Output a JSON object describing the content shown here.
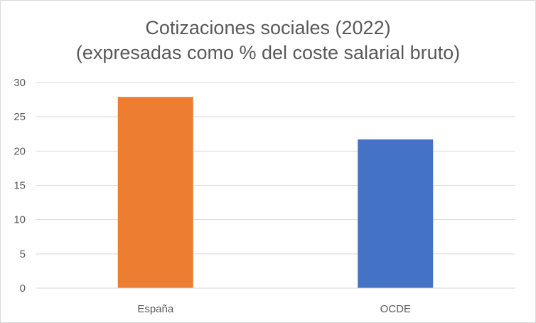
{
  "chart_data": {
    "type": "bar",
    "title": "Cotizaciones sociales (2022)",
    "subtitle": "(expresadas como % del coste salarial bruto)",
    "categories": [
      "España",
      "OCDE"
    ],
    "values": [
      27.9,
      21.7
    ],
    "colors": [
      "#ED7D31",
      "#4472C4"
    ],
    "xlabel": "",
    "ylabel": "",
    "ylim": [
      0,
      30
    ],
    "yticks": [
      0,
      5,
      10,
      15,
      20,
      25,
      30
    ],
    "grid": true,
    "legend": "none"
  }
}
